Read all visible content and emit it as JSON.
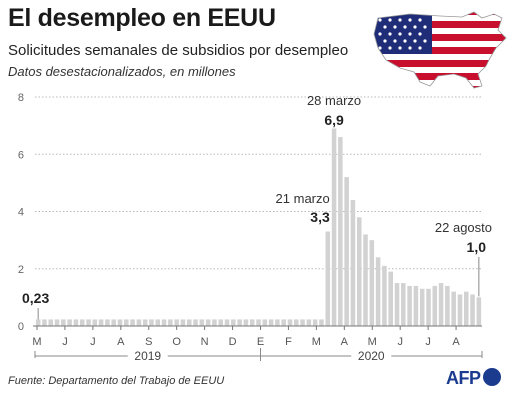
{
  "header": {
    "title": "El desempleo en EEUU",
    "subtitle": "Solicitudes semanales de subsidios por desempleo",
    "note": "Datos desestacionalizados, en millones"
  },
  "footer": {
    "source": "Fuente: Departamento del Trabajo de EEUU",
    "logo_text": "AFP"
  },
  "colors": {
    "bar": "#d2d2d2",
    "grid": "#b9b9b9",
    "flag_red": "#c8102e",
    "flag_blue": "#1f2c78"
  },
  "icons": {
    "map": "us-flag-map-icon",
    "logo": "afp-logo"
  },
  "chart_data": {
    "type": "bar",
    "ylim": [
      0,
      8
    ],
    "yticks": [
      0,
      2,
      4,
      6,
      8
    ],
    "grid": true,
    "month_ticks": [
      "M",
      "J",
      "J",
      "A",
      "S",
      "O",
      "N",
      "D",
      "E",
      "F",
      "M",
      "A",
      "M",
      "J",
      "J",
      "A"
    ],
    "year_labels": [
      "2019",
      "2020"
    ],
    "values": [
      0.23,
      0.23,
      0.23,
      0.23,
      0.23,
      0.23,
      0.23,
      0.23,
      0.23,
      0.23,
      0.23,
      0.23,
      0.23,
      0.23,
      0.23,
      0.23,
      0.23,
      0.23,
      0.23,
      0.23,
      0.23,
      0.23,
      0.23,
      0.23,
      0.23,
      0.23,
      0.23,
      0.23,
      0.23,
      0.23,
      0.23,
      0.23,
      0.23,
      0.23,
      0.23,
      0.23,
      0.23,
      0.23,
      0.23,
      0.23,
      0.23,
      0.23,
      0.23,
      0.23,
      0.23,
      0.23,
      3.3,
      6.9,
      6.6,
      5.2,
      4.4,
      3.8,
      3.2,
      3.0,
      2.4,
      2.1,
      1.9,
      1.5,
      1.5,
      1.4,
      1.4,
      1.3,
      1.3,
      1.4,
      1.5,
      1.4,
      1.2,
      1.1,
      1.2,
      1.1,
      1.0
    ],
    "annotations": [
      {
        "date": "",
        "value": "0,23",
        "index": 0
      },
      {
        "date": "21 marzo",
        "value": "3,3",
        "index": 46
      },
      {
        "date": "28 marzo",
        "value": "6,9",
        "index": 47
      },
      {
        "date": "22 agosto",
        "value": "1,0",
        "index": 70
      }
    ]
  }
}
